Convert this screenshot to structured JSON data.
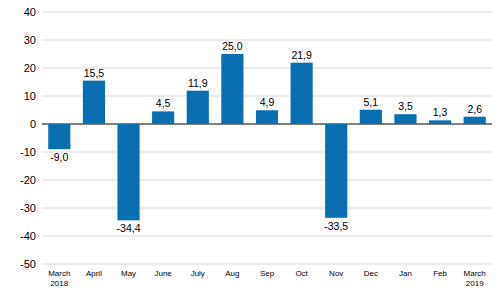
{
  "chart_data": {
    "type": "bar",
    "categories": [
      "March 2018",
      "April",
      "May",
      "June",
      "July",
      "Aug",
      "Sep",
      "Oct",
      "Nov",
      "Dec",
      "Jan",
      "Feb",
      "March 2019"
    ],
    "values": [
      -9.0,
      15.5,
      -34.4,
      4.5,
      11.9,
      25.0,
      4.9,
      21.9,
      -33.5,
      5.1,
      3.5,
      1.3,
      2.6
    ],
    "value_labels": [
      "-9,0",
      "15,5",
      "-34,4",
      "4,5",
      "11,9",
      "25,0",
      "4,9",
      "21,9",
      "-33,5",
      "5,1",
      "3,5",
      "1,3",
      "2,6"
    ],
    "color": "#0a6fb0",
    "ylim": [
      -50,
      40
    ],
    "yticks": [
      -50,
      -40,
      -30,
      -20,
      -10,
      0,
      10,
      20,
      30,
      40
    ],
    "grid": true,
    "data_labels": true
  }
}
